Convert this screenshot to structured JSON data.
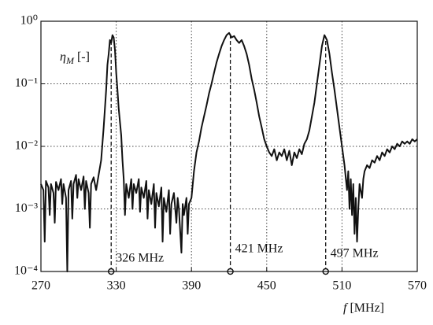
{
  "chart_data": {
    "type": "line",
    "log_y": true,
    "grid": true,
    "y_label": {
      "symbol": "η",
      "subscript": "M",
      "unit": "[-]"
    },
    "x_label": {
      "symbol": "f",
      "unit": "[MHz]"
    },
    "xlim": [
      270,
      570
    ],
    "xticks": [
      270,
      330,
      390,
      450,
      510,
      570
    ],
    "ylim": [
      0.0001,
      1
    ],
    "yticks": [
      {
        "value": 0.0001,
        "label": "10⁻⁴"
      },
      {
        "value": 0.001,
        "label": "10⁻³"
      },
      {
        "value": 0.01,
        "label": "10⁻²"
      },
      {
        "value": 0.1,
        "label": "10⁻¹"
      },
      {
        "value": 1,
        "label": "10⁰"
      }
    ],
    "peaks": [
      {
        "x": 326,
        "label": "326 MHz"
      },
      {
        "x": 421,
        "label": "421 MHz"
      },
      {
        "x": 497,
        "label": "497 MHz"
      }
    ],
    "x": [
      270,
      272,
      273,
      274,
      276,
      277,
      278,
      280,
      281,
      282,
      284,
      286,
      287,
      288,
      290,
      291,
      292,
      294,
      295,
      296,
      298,
      299,
      300,
      302,
      304,
      305,
      306,
      308,
      309,
      310,
      312,
      314,
      316,
      318,
      320,
      322,
      323,
      324,
      325,
      326,
      327,
      328,
      329,
      330,
      331,
      332,
      334,
      335,
      336,
      337,
      338,
      340,
      342,
      343,
      344,
      346,
      348,
      349,
      350,
      352,
      354,
      355,
      356,
      358,
      360,
      361,
      362,
      364,
      366,
      367,
      368,
      370,
      372,
      373,
      374,
      376,
      378,
      379,
      380,
      382,
      383,
      384,
      386,
      387,
      388,
      390,
      392,
      394,
      396,
      398,
      400,
      402,
      404,
      406,
      408,
      410,
      412,
      414,
      416,
      418,
      420,
      421,
      422,
      424,
      426,
      428,
      430,
      432,
      434,
      436,
      438,
      440,
      442,
      444,
      446,
      448,
      450,
      452,
      454,
      456,
      458,
      460,
      462,
      464,
      466,
      468,
      470,
      472,
      474,
      476,
      478,
      480,
      482,
      484,
      486,
      488,
      490,
      492,
      494,
      496,
      497,
      498,
      500,
      502,
      504,
      506,
      508,
      510,
      512,
      514,
      515,
      516,
      517,
      518,
      519,
      520,
      521,
      522,
      523,
      524,
      526,
      527,
      528,
      530,
      532,
      534,
      536,
      538,
      540,
      542,
      544,
      546,
      548,
      550,
      552,
      554,
      556,
      558,
      560,
      562,
      564,
      566,
      568,
      570
    ],
    "series": [
      {
        "color": "#111111",
        "values": [
          0.0025,
          0.002,
          0.0003,
          0.0028,
          0.0022,
          0.0008,
          0.0025,
          0.0018,
          0.0006,
          0.0027,
          0.002,
          0.003,
          0.0012,
          0.0025,
          0.0015,
          0.0001,
          0.002,
          0.0028,
          0.0007,
          0.0025,
          0.0035,
          0.0015,
          0.003,
          0.002,
          0.0033,
          0.001,
          0.0028,
          0.0018,
          0.0005,
          0.0025,
          0.0032,
          0.002,
          0.0035,
          0.006,
          0.02,
          0.08,
          0.2,
          0.3,
          0.5,
          0.45,
          0.6,
          0.55,
          0.35,
          0.15,
          0.08,
          0.04,
          0.015,
          0.006,
          0.003,
          0.0008,
          0.0025,
          0.0015,
          0.003,
          0.001,
          0.0025,
          0.0018,
          0.003,
          0.0009,
          0.0022,
          0.0015,
          0.0028,
          0.0007,
          0.002,
          0.0012,
          0.0025,
          0.0005,
          0.0018,
          0.0011,
          0.0022,
          0.0003,
          0.0015,
          0.0009,
          0.002,
          0.0004,
          0.0012,
          0.0018,
          0.0006,
          0.0015,
          0.001,
          0.0002,
          0.0012,
          0.0008,
          0.0015,
          0.0004,
          0.0012,
          0.0015,
          0.004,
          0.008,
          0.012,
          0.02,
          0.03,
          0.045,
          0.07,
          0.1,
          0.15,
          0.22,
          0.3,
          0.4,
          0.5,
          0.6,
          0.65,
          0.6,
          0.55,
          0.58,
          0.5,
          0.45,
          0.5,
          0.4,
          0.3,
          0.2,
          0.12,
          0.08,
          0.05,
          0.03,
          0.02,
          0.013,
          0.01,
          0.008,
          0.007,
          0.009,
          0.006,
          0.008,
          0.007,
          0.009,
          0.006,
          0.0085,
          0.005,
          0.008,
          0.0065,
          0.009,
          0.0075,
          0.011,
          0.013,
          0.018,
          0.03,
          0.05,
          0.1,
          0.2,
          0.4,
          0.6,
          0.55,
          0.5,
          0.3,
          0.15,
          0.08,
          0.04,
          0.02,
          0.01,
          0.005,
          0.002,
          0.004,
          0.001,
          0.003,
          0.0008,
          0.0025,
          0.0004,
          0.0015,
          0.0003,
          0.001,
          0.0025,
          0.0015,
          0.003,
          0.004,
          0.005,
          0.0045,
          0.006,
          0.0055,
          0.007,
          0.006,
          0.008,
          0.007,
          0.009,
          0.008,
          0.01,
          0.009,
          0.011,
          0.01,
          0.012,
          0.011,
          0.012,
          0.011,
          0.013,
          0.012,
          0.013
        ]
      }
    ]
  }
}
